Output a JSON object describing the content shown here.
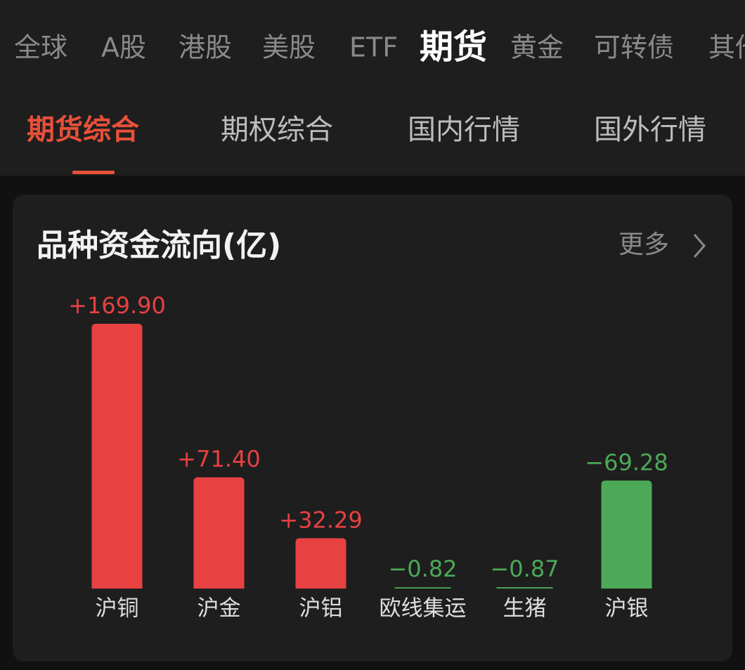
{
  "tabs": [
    "全球",
    "A股",
    "港股",
    "美股",
    "ETF",
    "期货",
    "黄金",
    "可转债",
    "其他"
  ],
  "subtabs": [
    "期货综合",
    "期权综合",
    "国内行情",
    "国外行情"
  ],
  "card": {
    "title": "品种资金流向(亿)",
    "more": "更多"
  },
  "chart_data": {
    "type": "bar",
    "categories": [
      "沪铜",
      "沪金",
      "沪铝",
      "欧线集运",
      "生猪",
      "沪银"
    ],
    "values": [
      169.9,
      71.4,
      32.29,
      -0.82,
      -0.87,
      -69.28
    ],
    "value_labels": [
      "+169.90",
      "+71.40",
      "+32.29",
      "−0.82",
      "−0.87",
      "−69.28"
    ],
    "colors": [
      "#e84142",
      "#e84142",
      "#e84142",
      "#4ca957",
      "#4ca957",
      "#4ca957"
    ]
  }
}
